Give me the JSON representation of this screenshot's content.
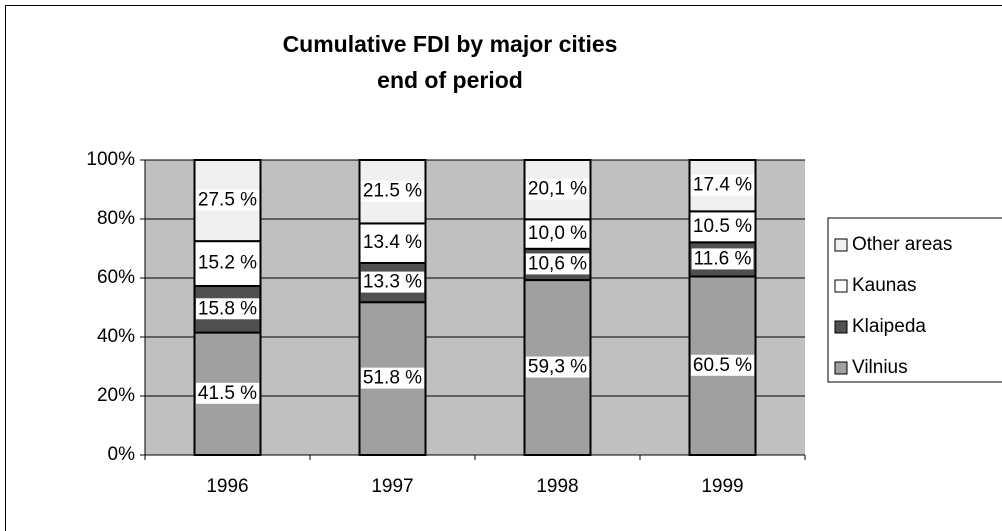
{
  "chart_data": {
    "type": "bar",
    "stacked": true,
    "title": "Cumulative FDI by major cities",
    "subtitle": "end of period",
    "categories": [
      "1996",
      "1997",
      "1998",
      "1999"
    ],
    "series": [
      {
        "name": "Vilnius",
        "color": "#a0a0a0",
        "values": [
          41.5,
          51.8,
          59.3,
          60.5
        ],
        "value_labels": [
          "41.5 %",
          "51.8 %",
          "59,3 %",
          "60.5 %"
        ]
      },
      {
        "name": "Klaipeda",
        "color": "#505050",
        "values": [
          15.8,
          13.3,
          10.6,
          11.6
        ],
        "value_labels": [
          "15.8 %",
          "13.3 %",
          "10,6 %",
          "11.6 %"
        ]
      },
      {
        "name": "Kaunas",
        "color": "#ffffff",
        "values": [
          15.2,
          13.4,
          10.0,
          10.5
        ],
        "value_labels": [
          "15.2 %",
          "13.4 %",
          "10,0 %",
          "10.5 %"
        ]
      },
      {
        "name": "Other areas",
        "color": "#f0f0f0",
        "values": [
          27.5,
          21.5,
          20.1,
          17.4
        ],
        "value_labels": [
          "27.5 %",
          "21.5 %",
          "20,1 %",
          "17.4 %"
        ]
      }
    ],
    "ylim": [
      0,
      100
    ],
    "yticks": [
      {
        "value": 0,
        "label": "0%"
      },
      {
        "value": 20,
        "label": "20%"
      },
      {
        "value": 40,
        "label": "40%"
      },
      {
        "value": 60,
        "label": "60%"
      },
      {
        "value": 80,
        "label": "80%"
      },
      {
        "value": 100,
        "label": "100%"
      }
    ],
    "grid": true,
    "legend": "right",
    "plot_background": "#c0c0c0"
  }
}
